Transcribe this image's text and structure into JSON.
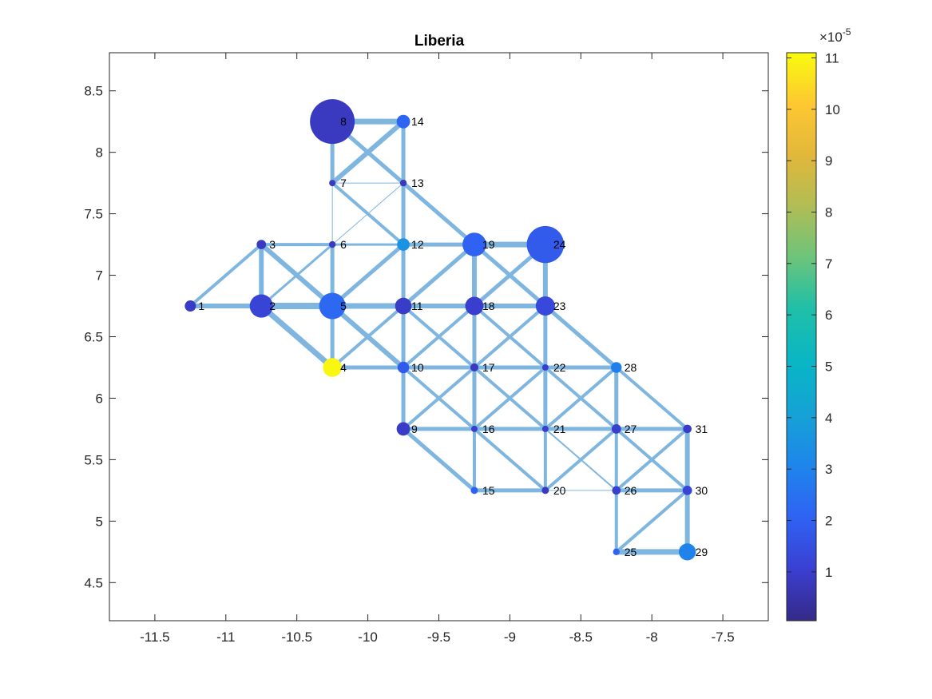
{
  "chart_data": {
    "type": "scatter",
    "title": "Liberia",
    "xlabel": "",
    "ylabel": "",
    "xlim": [
      -11.82,
      -7.18
    ],
    "ylim": [
      4.19,
      8.81
    ],
    "x_ticks": [
      -11.5,
      -11,
      -10.5,
      -10,
      -9.5,
      -9,
      -8.5,
      -8,
      -7.5
    ],
    "x_tick_labels": [
      "-11.5",
      "-11",
      "-10.5",
      "-10",
      "-9.5",
      "-9",
      "-8.5",
      "-8",
      "-7.5"
    ],
    "y_ticks": [
      4.5,
      5,
      5.5,
      6,
      6.5,
      7,
      7.5,
      8,
      8.5
    ],
    "y_tick_labels": [
      "4.5",
      "5",
      "5.5",
      "6",
      "6.5",
      "7",
      "7.5",
      "8",
      "8.5"
    ],
    "grid": false,
    "colormap": "parula",
    "colorbar": {
      "clim": [
        0.05,
        11.1
      ],
      "exponent_label": "×10",
      "exponent_power": "-5",
      "ticks": [
        1,
        2,
        3,
        4,
        5,
        6,
        7,
        8,
        9,
        10,
        11
      ],
      "tick_labels": [
        "1",
        "2",
        "3",
        "4",
        "5",
        "6",
        "7",
        "8",
        "9",
        "10",
        "11"
      ]
    },
    "nodes": [
      {
        "id": "1",
        "x": -11.25,
        "y": 6.75,
        "value": 0.9
      },
      {
        "id": "2",
        "x": -10.75,
        "y": 6.75,
        "value": 1.2
      },
      {
        "id": "3",
        "x": -10.75,
        "y": 7.25,
        "value": 0.8
      },
      {
        "id": "4",
        "x": -10.25,
        "y": 6.25,
        "value": 11.0
      },
      {
        "id": "5",
        "x": -10.25,
        "y": 6.75,
        "value": 2.2
      },
      {
        "id": "6",
        "x": -10.25,
        "y": 7.25,
        "value": 0.8
      },
      {
        "id": "7",
        "x": -10.25,
        "y": 7.75,
        "value": 0.8
      },
      {
        "id": "8",
        "x": -10.25,
        "y": 8.25,
        "value": 0.8
      },
      {
        "id": "9",
        "x": -9.75,
        "y": 5.75,
        "value": 0.9
      },
      {
        "id": "10",
        "x": -9.75,
        "y": 6.25,
        "value": 1.8
      },
      {
        "id": "11",
        "x": -9.75,
        "y": 6.75,
        "value": 0.9
      },
      {
        "id": "12",
        "x": -9.75,
        "y": 7.25,
        "value": 3.5
      },
      {
        "id": "13",
        "x": -9.75,
        "y": 7.75,
        "value": 0.8
      },
      {
        "id": "14",
        "x": -9.75,
        "y": 8.25,
        "value": 2.1
      },
      {
        "id": "15",
        "x": -9.25,
        "y": 5.25,
        "value": 2.0
      },
      {
        "id": "16",
        "x": -9.25,
        "y": 5.75,
        "value": 1.0
      },
      {
        "id": "17",
        "x": -9.25,
        "y": 6.25,
        "value": 0.8
      },
      {
        "id": "18",
        "x": -9.25,
        "y": 6.75,
        "value": 1.0
      },
      {
        "id": "19",
        "x": -9.25,
        "y": 7.25,
        "value": 2.0
      },
      {
        "id": "20",
        "x": -8.75,
        "y": 5.25,
        "value": 0.8
      },
      {
        "id": "21",
        "x": -8.75,
        "y": 5.75,
        "value": 1.0
      },
      {
        "id": "22",
        "x": -8.75,
        "y": 6.25,
        "value": 1.0
      },
      {
        "id": "23",
        "x": -8.75,
        "y": 6.75,
        "value": 1.3
      },
      {
        "id": "24",
        "x": -8.75,
        "y": 7.25,
        "value": 1.8
      },
      {
        "id": "25",
        "x": -8.25,
        "y": 4.75,
        "value": 2.0
      },
      {
        "id": "26",
        "x": -8.25,
        "y": 5.25,
        "value": 1.0
      },
      {
        "id": "27",
        "x": -8.25,
        "y": 5.75,
        "value": 1.0
      },
      {
        "id": "28",
        "x": -8.25,
        "y": 6.25,
        "value": 2.9
      },
      {
        "id": "29",
        "x": -7.75,
        "y": 4.75,
        "value": 3.0
      },
      {
        "id": "30",
        "x": -7.75,
        "y": 5.25,
        "value": 1.2
      },
      {
        "id": "31",
        "x": -7.75,
        "y": 5.75,
        "value": 0.9
      }
    ],
    "node_marker_size": {
      "1": 0.25,
      "2": 0.52,
      "3": 0.21,
      "4": 0.42,
      "5": 0.59,
      "6": 0.15,
      "7": 0.14,
      "8": 1.0,
      "9": 0.3,
      "10": 0.26,
      "11": 0.37,
      "12": 0.28,
      "13": 0.15,
      "14": 0.3,
      "15": 0.16,
      "16": 0.1,
      "17": 0.18,
      "18": 0.41,
      "19": 0.53,
      "20": 0.16,
      "21": 0.1,
      "22": 0.11,
      "23": 0.43,
      "24": 0.83,
      "25": 0.15,
      "26": 0.19,
      "27": 0.21,
      "28": 0.24,
      "29": 0.38,
      "30": 0.21,
      "31": 0.19
    },
    "edges": [
      [
        "1",
        "2",
        6
      ],
      [
        "1",
        "3",
        4
      ],
      [
        "2",
        "3",
        6
      ],
      [
        "2",
        "5",
        8
      ],
      [
        "2",
        "4",
        7
      ],
      [
        "2",
        "6",
        3
      ],
      [
        "3",
        "6",
        4
      ],
      [
        "3",
        "5",
        6
      ],
      [
        "4",
        "5",
        5
      ],
      [
        "4",
        "10",
        5
      ],
      [
        "4",
        "11",
        4
      ],
      [
        "5",
        "6",
        5
      ],
      [
        "5",
        "11",
        7
      ],
      [
        "5",
        "10",
        6
      ],
      [
        "5",
        "12",
        5
      ],
      [
        "6",
        "7",
        1
      ],
      [
        "6",
        "12",
        3
      ],
      [
        "6",
        "13",
        1
      ],
      [
        "7",
        "8",
        5
      ],
      [
        "7",
        "13",
        1
      ],
      [
        "7",
        "12",
        4
      ],
      [
        "7",
        "14",
        6
      ],
      [
        "8",
        "14",
        7
      ],
      [
        "8",
        "13",
        5
      ],
      [
        "9",
        "10",
        5
      ],
      [
        "9",
        "16",
        5
      ],
      [
        "9",
        "15",
        5
      ],
      [
        "9",
        "17",
        4
      ],
      [
        "10",
        "11",
        5
      ],
      [
        "10",
        "17",
        5
      ],
      [
        "10",
        "16",
        4
      ],
      [
        "10",
        "18",
        4
      ],
      [
        "11",
        "12",
        5
      ],
      [
        "11",
        "18",
        6
      ],
      [
        "11",
        "17",
        4
      ],
      [
        "11",
        "19",
        5
      ],
      [
        "12",
        "13",
        5
      ],
      [
        "12",
        "19",
        5
      ],
      [
        "13",
        "14",
        5
      ],
      [
        "13",
        "19",
        5
      ],
      [
        "15",
        "16",
        4
      ],
      [
        "15",
        "20",
        5
      ],
      [
        "16",
        "17",
        5
      ],
      [
        "16",
        "21",
        5
      ],
      [
        "16",
        "20",
        4
      ],
      [
        "16",
        "22",
        4
      ],
      [
        "17",
        "18",
        5
      ],
      [
        "17",
        "22",
        5
      ],
      [
        "17",
        "21",
        4
      ],
      [
        "17",
        "23",
        4
      ],
      [
        "18",
        "19",
        6
      ],
      [
        "18",
        "23",
        6
      ],
      [
        "18",
        "22",
        4
      ],
      [
        "18",
        "24",
        5
      ],
      [
        "19",
        "24",
        7
      ],
      [
        "19",
        "23",
        5
      ],
      [
        "20",
        "21",
        4
      ],
      [
        "20",
        "26",
        1
      ],
      [
        "20",
        "27",
        4
      ],
      [
        "21",
        "22",
        5
      ],
      [
        "21",
        "27",
        5
      ],
      [
        "21",
        "26",
        2
      ],
      [
        "21",
        "28",
        4
      ],
      [
        "22",
        "23",
        5
      ],
      [
        "22",
        "28",
        5
      ],
      [
        "22",
        "27",
        4
      ],
      [
        "23",
        "24",
        6
      ],
      [
        "23",
        "28",
        5
      ],
      [
        "25",
        "26",
        4
      ],
      [
        "25",
        "29",
        7
      ],
      [
        "25",
        "30",
        4
      ],
      [
        "26",
        "27",
        4
      ],
      [
        "26",
        "30",
        5
      ],
      [
        "26",
        "31",
        4
      ],
      [
        "27",
        "28",
        5
      ],
      [
        "27",
        "31",
        5
      ],
      [
        "27",
        "30",
        4
      ],
      [
        "28",
        "31",
        4
      ],
      [
        "29",
        "30",
        6
      ],
      [
        "30",
        "31",
        6
      ]
    ],
    "edge_color": "#7eb6e0"
  }
}
